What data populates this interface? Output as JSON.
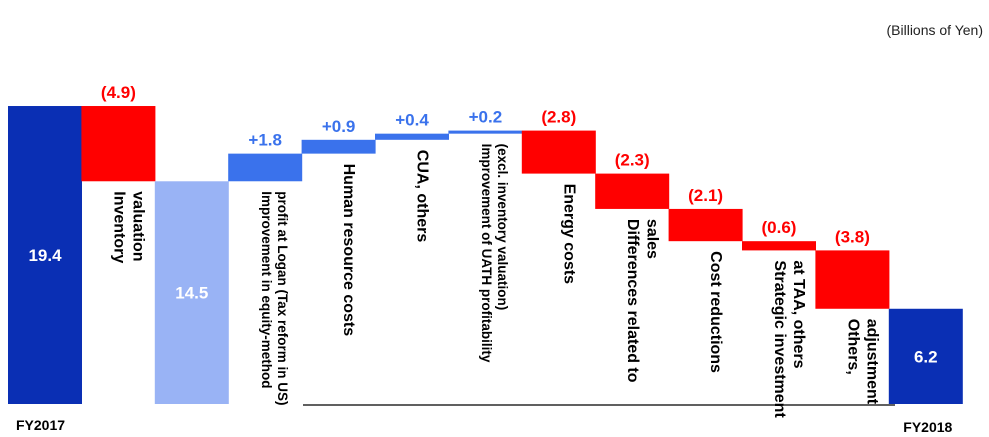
{
  "unit_label": "(Billions of Yen)",
  "chart_data": {
    "type": "waterfall",
    "start": {
      "label": "FY2017",
      "value": 19.4,
      "value_label": "19.4"
    },
    "end": {
      "label": "FY2018",
      "value": 6.2,
      "value_label": "6.2"
    },
    "steps": [
      {
        "category": "Inventory valuation",
        "lines": [
          "Inventory",
          "valuation"
        ],
        "delta": -4.9,
        "delta_label": "(4.9)",
        "subtotal_after": {
          "value": 14.5,
          "value_label": "14.5"
        }
      },
      {
        "category": "Improvement in equity-method profit at Logan (Tax reform in US)",
        "lines": [
          "Improvement  in equity-method",
          "profit at Logan (Tax reform in US)"
        ],
        "delta": 1.8,
        "delta_label": "+1.8"
      },
      {
        "category": "Human resource costs",
        "lines": [
          "Human resource costs"
        ],
        "delta": 0.9,
        "delta_label": "+0.9"
      },
      {
        "category": "CUA, others",
        "lines": [
          "CUA, others"
        ],
        "delta": 0.4,
        "delta_label": "+0.4"
      },
      {
        "category": "Improvement of UATH profitability (excl. inventory valuation)",
        "lines": [
          "Improvement of UATH profitability",
          "(excl. inventory valuation)"
        ],
        "delta": 0.2,
        "delta_label": "+0.2"
      },
      {
        "category": "Energy costs",
        "lines": [
          "Energy costs"
        ],
        "delta": -2.8,
        "delta_label": "(2.8)"
      },
      {
        "category": "Differences related to sales",
        "lines": [
          "Differences related to",
          "sales"
        ],
        "delta": -2.3,
        "delta_label": "(2.3)"
      },
      {
        "category": "Cost reductions",
        "lines": [
          "Cost reductions"
        ],
        "delta": -2.1,
        "delta_label": "(2.1)"
      },
      {
        "category": "Strategic investment at TAA, others",
        "lines": [
          "Strategic investment",
          "at TAA, others"
        ],
        "delta": -0.6,
        "delta_label": "(0.6)"
      },
      {
        "category": "Others, adjustment",
        "lines": [
          "Others,",
          "adjustment"
        ],
        "delta": -3.8,
        "delta_label": "(3.8)"
      }
    ],
    "colors": {
      "total": "#0a2fb4",
      "subtotal": "#99b3f5",
      "increase": "#3a72ec",
      "decrease": "#ff0000",
      "increase_label": "#3a72ec",
      "decrease_label": "#ff0000",
      "total_label": "#ffffff"
    }
  }
}
